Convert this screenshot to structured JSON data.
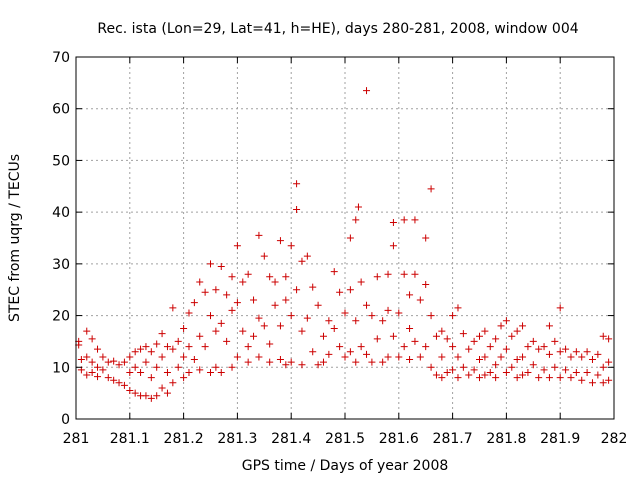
{
  "chart_data": {
    "type": "scatter",
    "title": "Rec. ista (Lon=29, Lat=41, h=HE), days 280-281, 2008, window 004",
    "xlabel": "GPS time / Days of year 2008",
    "ylabel": "STEC from uqrg / TECUs",
    "xlim": [
      281,
      282
    ],
    "ylim": [
      0,
      70
    ],
    "xticks": [
      281,
      281.1,
      281.2,
      281.3,
      281.4,
      281.5,
      281.6,
      281.7,
      281.8,
      281.9,
      282
    ],
    "xtick_labels": [
      "281",
      "281.1",
      "281.2",
      "281.3",
      "281.4",
      "281.5",
      "281.6",
      "281.7",
      "281.8",
      "281.9",
      "282"
    ],
    "yticks": [
      0,
      10,
      20,
      30,
      40,
      50,
      60,
      70
    ],
    "ytick_labels": [
      "0",
      "10",
      "20",
      "30",
      "40",
      "50",
      "60",
      "70"
    ],
    "grid": true,
    "marker": "+",
    "marker_color": "#cc0000",
    "points": [
      [
        281.005,
        15.0
      ],
      [
        281.005,
        14.3
      ],
      [
        281.01,
        11.5
      ],
      [
        281.01,
        9.5
      ],
      [
        281.02,
        17.0
      ],
      [
        281.02,
        12.0
      ],
      [
        281.02,
        8.5
      ],
      [
        281.03,
        15.5
      ],
      [
        281.03,
        11.0
      ],
      [
        281.03,
        9.0
      ],
      [
        281.04,
        13.5
      ],
      [
        281.04,
        10.0
      ],
      [
        281.04,
        8.2
      ],
      [
        281.05,
        12.0
      ],
      [
        281.05,
        9.5
      ],
      [
        281.06,
        11.0
      ],
      [
        281.06,
        8.0
      ],
      [
        281.07,
        11.2
      ],
      [
        281.07,
        7.5
      ],
      [
        281.08,
        10.5
      ],
      [
        281.08,
        7.0
      ],
      [
        281.09,
        11.0
      ],
      [
        281.09,
        6.5
      ],
      [
        281.1,
        12.0
      ],
      [
        281.1,
        9.0
      ],
      [
        281.1,
        5.5
      ],
      [
        281.11,
        13.0
      ],
      [
        281.11,
        10.0
      ],
      [
        281.11,
        5.0
      ],
      [
        281.12,
        13.5
      ],
      [
        281.12,
        9.0
      ],
      [
        281.12,
        4.5
      ],
      [
        281.13,
        14.0
      ],
      [
        281.13,
        11.0
      ],
      [
        281.13,
        4.5
      ],
      [
        281.14,
        13.0
      ],
      [
        281.14,
        8.0
      ],
      [
        281.14,
        4.0
      ],
      [
        281.15,
        14.5
      ],
      [
        281.15,
        10.0
      ],
      [
        281.15,
        4.5
      ],
      [
        281.16,
        16.5
      ],
      [
        281.16,
        12.0
      ],
      [
        281.16,
        6.0
      ],
      [
        281.17,
        14.0
      ],
      [
        281.17,
        9.0
      ],
      [
        281.17,
        5.0
      ],
      [
        281.18,
        21.5
      ],
      [
        281.18,
        13.5
      ],
      [
        281.18,
        7.0
      ],
      [
        281.19,
        15.0
      ],
      [
        281.19,
        10.0
      ],
      [
        281.2,
        17.5
      ],
      [
        281.2,
        12.0
      ],
      [
        281.2,
        8.0
      ],
      [
        281.21,
        20.5
      ],
      [
        281.21,
        14.0
      ],
      [
        281.21,
        9.0
      ],
      [
        281.22,
        22.5
      ],
      [
        281.22,
        11.5
      ],
      [
        281.23,
        26.5
      ],
      [
        281.23,
        16.0
      ],
      [
        281.23,
        9.5
      ],
      [
        281.24,
        24.5
      ],
      [
        281.24,
        14.0
      ],
      [
        281.25,
        30.0
      ],
      [
        281.25,
        20.0
      ],
      [
        281.25,
        9.0
      ],
      [
        281.26,
        25.0
      ],
      [
        281.26,
        17.0
      ],
      [
        281.26,
        10.0
      ],
      [
        281.27,
        29.5
      ],
      [
        281.27,
        18.5
      ],
      [
        281.27,
        9.0
      ],
      [
        281.28,
        24.0
      ],
      [
        281.28,
        15.0
      ],
      [
        281.29,
        27.5
      ],
      [
        281.29,
        21.0
      ],
      [
        281.29,
        10.0
      ],
      [
        281.3,
        33.5
      ],
      [
        281.3,
        22.5
      ],
      [
        281.3,
        12.0
      ],
      [
        281.31,
        26.5
      ],
      [
        281.31,
        17.0
      ],
      [
        281.32,
        28.0
      ],
      [
        281.32,
        14.0
      ],
      [
        281.32,
        11.0
      ],
      [
        281.33,
        23.0
      ],
      [
        281.33,
        16.0
      ],
      [
        281.34,
        35.5
      ],
      [
        281.34,
        19.5
      ],
      [
        281.34,
        12.0
      ],
      [
        281.35,
        31.5
      ],
      [
        281.35,
        18.0
      ],
      [
        281.36,
        27.5
      ],
      [
        281.36,
        14.5
      ],
      [
        281.36,
        11.0
      ],
      [
        281.37,
        26.5
      ],
      [
        281.37,
        22.0
      ],
      [
        281.38,
        34.5
      ],
      [
        281.38,
        18.0
      ],
      [
        281.38,
        11.5
      ],
      [
        281.39,
        27.5
      ],
      [
        281.39,
        23.0
      ],
      [
        281.39,
        10.5
      ],
      [
        281.4,
        33.5
      ],
      [
        281.4,
        20.0
      ],
      [
        281.4,
        11.0
      ],
      [
        281.41,
        45.5
      ],
      [
        281.41,
        40.5
      ],
      [
        281.41,
        25.0
      ],
      [
        281.42,
        30.5
      ],
      [
        281.42,
        17.0
      ],
      [
        281.42,
        10.5
      ],
      [
        281.43,
        31.5
      ],
      [
        281.43,
        19.5
      ],
      [
        281.44,
        25.5
      ],
      [
        281.44,
        13.0
      ],
      [
        281.45,
        22.0
      ],
      [
        281.45,
        10.5
      ],
      [
        281.46,
        16.0
      ],
      [
        281.46,
        11.0
      ],
      [
        281.47,
        19.0
      ],
      [
        281.47,
        12.5
      ],
      [
        281.48,
        28.5
      ],
      [
        281.48,
        17.5
      ],
      [
        281.49,
        24.5
      ],
      [
        281.49,
        14.0
      ],
      [
        281.5,
        20.5
      ],
      [
        281.5,
        12.0
      ],
      [
        281.51,
        35.0
      ],
      [
        281.51,
        25.0
      ],
      [
        281.51,
        13.0
      ],
      [
        281.52,
        38.5
      ],
      [
        281.52,
        19.0
      ],
      [
        281.52,
        11.0
      ],
      [
        281.525,
        41.0
      ],
      [
        281.53,
        26.5
      ],
      [
        281.53,
        14.0
      ],
      [
        281.54,
        63.5
      ],
      [
        281.54,
        22.0
      ],
      [
        281.54,
        12.5
      ],
      [
        281.55,
        20.0
      ],
      [
        281.55,
        11.0
      ],
      [
        281.56,
        27.5
      ],
      [
        281.56,
        15.5
      ],
      [
        281.57,
        19.0
      ],
      [
        281.57,
        11.0
      ],
      [
        281.58,
        28.0
      ],
      [
        281.58,
        21.0
      ],
      [
        281.58,
        12.0
      ],
      [
        281.59,
        38.0
      ],
      [
        281.59,
        33.5
      ],
      [
        281.59,
        16.0
      ],
      [
        281.6,
        20.5
      ],
      [
        281.6,
        12.0
      ],
      [
        281.61,
        38.5
      ],
      [
        281.61,
        28.0
      ],
      [
        281.61,
        14.0
      ],
      [
        281.62,
        24.0
      ],
      [
        281.62,
        17.5
      ],
      [
        281.62,
        11.5
      ],
      [
        281.63,
        38.5
      ],
      [
        281.63,
        28.0
      ],
      [
        281.63,
        15.0
      ],
      [
        281.64,
        23.0
      ],
      [
        281.64,
        12.0
      ],
      [
        281.65,
        35.0
      ],
      [
        281.65,
        26.0
      ],
      [
        281.65,
        14.0
      ],
      [
        281.66,
        44.5
      ],
      [
        281.66,
        20.0
      ],
      [
        281.66,
        10.0
      ],
      [
        281.67,
        16.0
      ],
      [
        281.67,
        8.5
      ],
      [
        281.68,
        17.0
      ],
      [
        281.68,
        12.0
      ],
      [
        281.68,
        8.0
      ],
      [
        281.69,
        15.5
      ],
      [
        281.69,
        9.0
      ],
      [
        281.7,
        20.0
      ],
      [
        281.7,
        14.0
      ],
      [
        281.7,
        9.5
      ],
      [
        281.71,
        21.5
      ],
      [
        281.71,
        12.0
      ],
      [
        281.71,
        8.0
      ],
      [
        281.72,
        16.5
      ],
      [
        281.72,
        10.0
      ],
      [
        281.73,
        13.5
      ],
      [
        281.73,
        8.5
      ],
      [
        281.74,
        15.0
      ],
      [
        281.74,
        9.5
      ],
      [
        281.75,
        16.0
      ],
      [
        281.75,
        11.5
      ],
      [
        281.75,
        8.0
      ],
      [
        281.76,
        17.0
      ],
      [
        281.76,
        12.0
      ],
      [
        281.76,
        8.5
      ],
      [
        281.77,
        14.0
      ],
      [
        281.77,
        9.0
      ],
      [
        281.78,
        15.5
      ],
      [
        281.78,
        10.5
      ],
      [
        281.78,
        8.0
      ],
      [
        281.79,
        18.0
      ],
      [
        281.79,
        12.0
      ],
      [
        281.8,
        19.0
      ],
      [
        281.8,
        13.5
      ],
      [
        281.8,
        9.0
      ],
      [
        281.81,
        16.0
      ],
      [
        281.81,
        10.0
      ],
      [
        281.82,
        17.0
      ],
      [
        281.82,
        11.5
      ],
      [
        281.82,
        8.0
      ],
      [
        281.83,
        18.0
      ],
      [
        281.83,
        12.0
      ],
      [
        281.83,
        8.5
      ],
      [
        281.84,
        14.0
      ],
      [
        281.84,
        9.0
      ],
      [
        281.85,
        15.0
      ],
      [
        281.85,
        10.5
      ],
      [
        281.86,
        13.5
      ],
      [
        281.86,
        8.0
      ],
      [
        281.87,
        14.0
      ],
      [
        281.87,
        9.5
      ],
      [
        281.88,
        18.0
      ],
      [
        281.88,
        12.5
      ],
      [
        281.88,
        8.0
      ],
      [
        281.89,
        15.0
      ],
      [
        281.89,
        10.0
      ],
      [
        281.9,
        21.5
      ],
      [
        281.9,
        13.0
      ],
      [
        281.9,
        8.0
      ],
      [
        281.91,
        13.5
      ],
      [
        281.91,
        9.5
      ],
      [
        281.92,
        12.0
      ],
      [
        281.92,
        8.0
      ],
      [
        281.93,
        13.0
      ],
      [
        281.93,
        9.0
      ],
      [
        281.94,
        12.0
      ],
      [
        281.94,
        7.5
      ],
      [
        281.95,
        13.0
      ],
      [
        281.95,
        9.0
      ],
      [
        281.96,
        11.5
      ],
      [
        281.96,
        7.0
      ],
      [
        281.97,
        12.5
      ],
      [
        281.97,
        8.5
      ],
      [
        281.98,
        16.0
      ],
      [
        281.98,
        10.0
      ],
      [
        281.98,
        7.0
      ],
      [
        281.99,
        15.5
      ],
      [
        281.99,
        11.0
      ],
      [
        281.99,
        7.5
      ]
    ]
  }
}
